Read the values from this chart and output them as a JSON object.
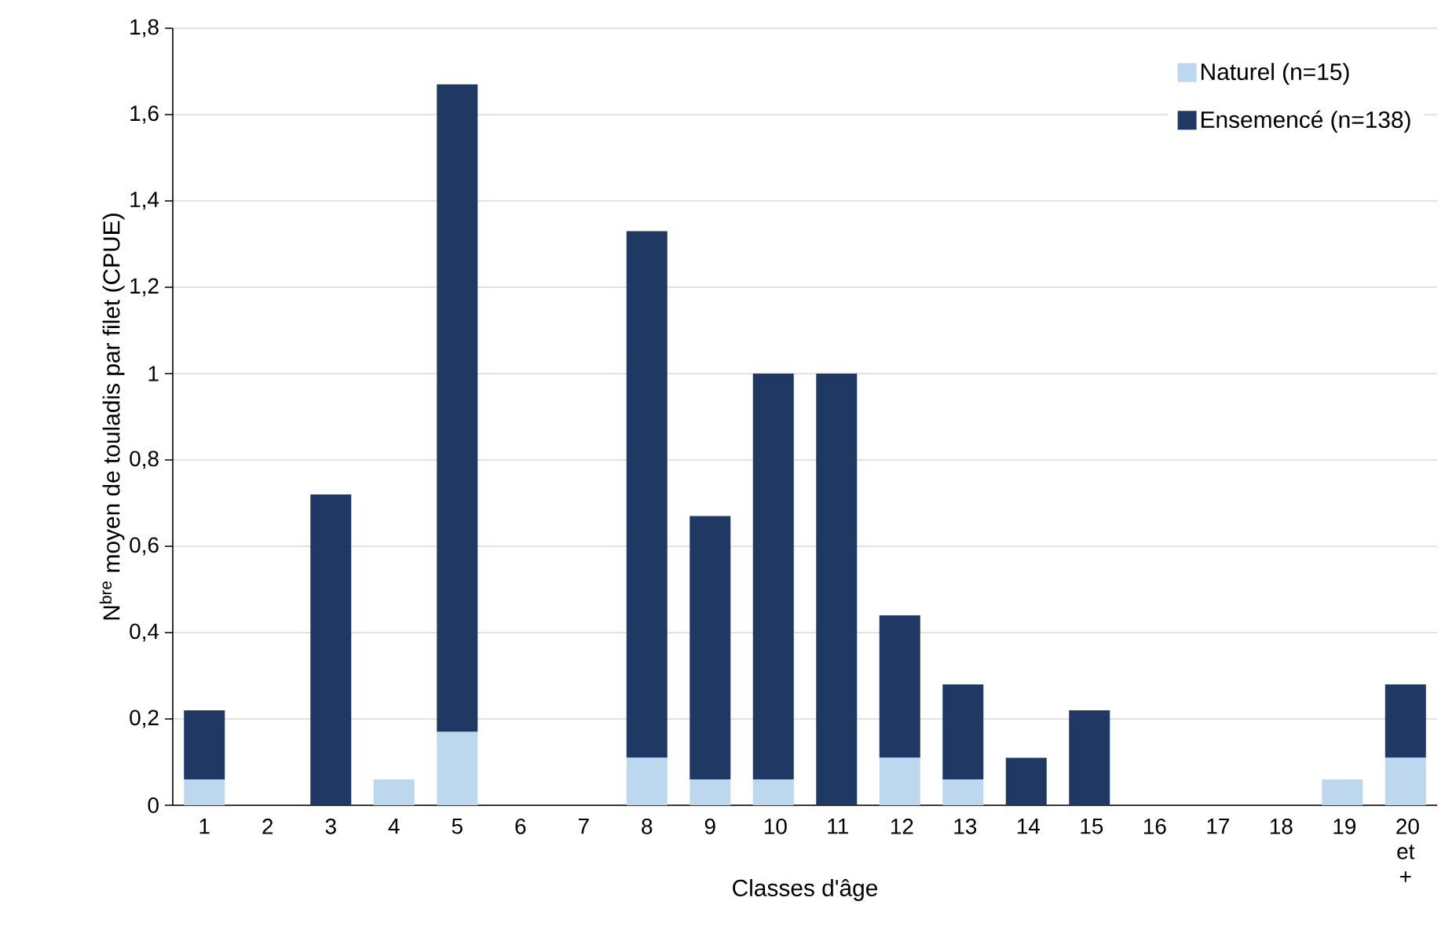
{
  "chart_data": {
    "type": "bar",
    "stacked": true,
    "xlabel": "Classes d'âge",
    "ylabel": "N$^{bre}$ moyen de touladis par filet (CPUE)",
    "categories": [
      "1",
      "2",
      "3",
      "4",
      "5",
      "6",
      "7",
      "8",
      "9",
      "10",
      "11",
      "12",
      "13",
      "14",
      "15",
      "16",
      "17",
      "18",
      "19",
      "20 et +"
    ],
    "series": [
      {
        "name": "Naturel (n=15)",
        "color": "#bdd7ee",
        "values": [
          0.06,
          0,
          0,
          0.06,
          0.17,
          0,
          0,
          0.11,
          0.06,
          0.06,
          0,
          0.11,
          0.06,
          0,
          0,
          0,
          0,
          0,
          0.06,
          0.11
        ]
      },
      {
        "name": "Ensemencé (n=138)",
        "color": "#203864",
        "values": [
          0.16,
          0,
          0.72,
          0,
          1.5,
          0,
          0,
          1.22,
          0.61,
          0.94,
          1.0,
          0.33,
          0.22,
          0.11,
          0.22,
          0,
          0,
          0,
          0,
          0.17
        ]
      }
    ],
    "ylim": [
      0,
      1.8
    ],
    "yticks": [
      0,
      {
        "value": 0.2,
        "label": "0,2"
      },
      {
        "value": 0.4,
        "label": "0,4"
      },
      {
        "value": 0.6,
        "label": "0,6"
      },
      {
        "value": 0.8,
        "label": "0,8"
      },
      1,
      {
        "value": 1.2,
        "label": "1,2"
      },
      {
        "value": 1.4,
        "label": "1,4"
      },
      {
        "value": 1.6,
        "label": "1,6"
      },
      {
        "value": 1.8,
        "label": "1,8"
      }
    ],
    "grid": "y",
    "legend": "top right"
  }
}
